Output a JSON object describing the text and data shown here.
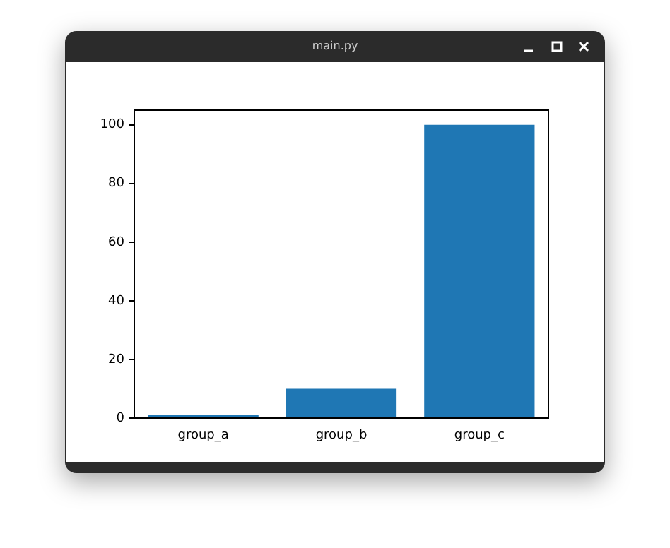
{
  "chart_data": {
    "type": "bar",
    "annotations": [
      "main.py"
    ],
    "categories": [
      "group_a",
      "group_b",
      "group_c"
    ],
    "values": [
      1,
      10,
      100
    ],
    "color": "#1f77b4",
    "ylim": [
      0,
      105
    ],
    "yticks": [
      0,
      20,
      40,
      60,
      80,
      100
    ],
    "grid": false,
    "legend": false
  }
}
